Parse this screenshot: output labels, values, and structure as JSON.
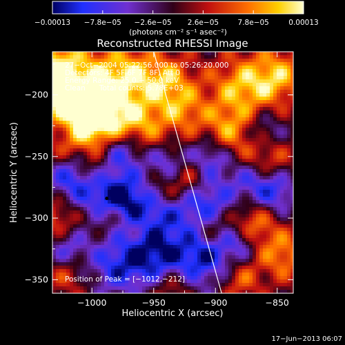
{
  "chart_data": {
    "type": "heatmap",
    "title": "Reconstructed RHESSI Image",
    "xlabel": "Heliocentric X (arcsec)",
    "ylabel": "Heliocentric Y (arcsec)",
    "xlim": [
      -1032,
      -837
    ],
    "ylim": [
      -361,
      -165
    ],
    "xticks": [
      -1000,
      -950,
      -900,
      -850
    ],
    "xtick_labels": [
      "−1000",
      "−950",
      "−900",
      "−850"
    ],
    "yticks": [
      -200,
      -250,
      -300,
      -350
    ],
    "ytick_labels": [
      "−200",
      "−250",
      "−300",
      "−350"
    ],
    "colorbar": {
      "min": -0.00013,
      "max": 0.00013,
      "tick_labels": [
        "−0.00013",
        "−7.8e−05",
        "−2.6e−05",
        "2.6e−05",
        "7.8e−05",
        "0.00013"
      ],
      "unit_label": "(photons cm⁻² s⁻¹ asec⁻²)"
    },
    "annotations": [
      "27−Oct−2004 05:22:56.000 to 05:26:20.000",
      "Detectors: 4F 5F 6F 7F 8F, Att 0",
      "Energy Range: 25.0 − 50.0 keV",
      "Clean      Total counts: 5.78E+03"
    ],
    "peak_label": "Position of Peak = [−1012,−212]",
    "peak": [
      -1012,
      -212
    ],
    "limb_line": [
      [
        -950,
        -165
      ],
      [
        -895,
        -361
      ]
    ],
    "marker": [
      -988,
      -284
    ]
  },
  "footer": {
    "timestamp": "17−Jun−2013 06:07"
  }
}
